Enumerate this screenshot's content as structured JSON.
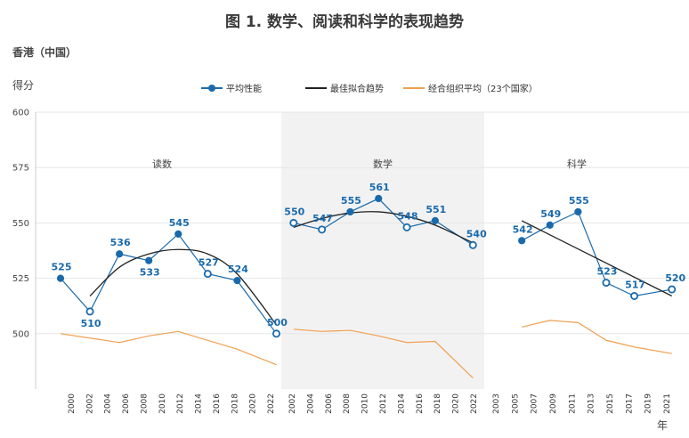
{
  "title": "图 1. 数学、阅读和科学的表现趋势",
  "country": "香港（中国）",
  "chart_data": {
    "type": "line",
    "ylabel": "得分",
    "xlabel": "年",
    "ylim": [
      475,
      600
    ],
    "yticks": [
      500,
      525,
      550,
      575,
      600
    ],
    "legend": {
      "mean": "平均性能",
      "trend": "最佳拟合趋势",
      "oecd": "经合组织平均（23个国家）"
    },
    "colors": {
      "mean": "#1a6aab",
      "trend": "#222222",
      "oecd": "#f0a050",
      "shade": "#f2f2f2",
      "grid": "#e6e6e6"
    },
    "panels": [
      {
        "name": "读数",
        "shaded": false,
        "x_labels": [
          "2000",
          "2002",
          "2004",
          "2006",
          "2008",
          "2010",
          "2012",
          "2014",
          "2016",
          "2018",
          "2020",
          "2022"
        ],
        "mean": [
          {
            "year": 2000,
            "value": 525,
            "hollow": false,
            "label": "525"
          },
          {
            "year": 2003,
            "value": 510,
            "hollow": true,
            "label": "510"
          },
          {
            "year": 2006,
            "value": 536,
            "hollow": false,
            "label": "536"
          },
          {
            "year": 2009,
            "value": 533,
            "hollow": false,
            "label": "533"
          },
          {
            "year": 2012,
            "value": 545,
            "hollow": false,
            "label": "545"
          },
          {
            "year": 2015,
            "value": 527,
            "hollow": true,
            "label": "527"
          },
          {
            "year": 2018,
            "value": 524,
            "hollow": false,
            "label": "524"
          },
          {
            "year": 2022,
            "value": 500,
            "hollow": true,
            "label": "500"
          }
        ],
        "trend": [
          [
            2003,
            517
          ],
          [
            2006,
            530
          ],
          [
            2009,
            536
          ],
          [
            2012,
            538
          ],
          [
            2015,
            536
          ],
          [
            2018,
            527
          ],
          [
            2022,
            504
          ]
        ],
        "oecd": [
          [
            2000,
            500
          ],
          [
            2003,
            498
          ],
          [
            2006,
            496
          ],
          [
            2009,
            499
          ],
          [
            2012,
            501
          ],
          [
            2015,
            497
          ],
          [
            2018,
            493
          ],
          [
            2022,
            486
          ]
        ]
      },
      {
        "name": "数学",
        "shaded": true,
        "x_labels": [
          "2002",
          "2004",
          "2006",
          "2008",
          "2010",
          "2012",
          "2014",
          "2016",
          "2018",
          "2020",
          "2022"
        ],
        "mean": [
          {
            "year": 2003,
            "value": 550,
            "hollow": true,
            "label": "550"
          },
          {
            "year": 2006,
            "value": 547,
            "hollow": true,
            "label": "547"
          },
          {
            "year": 2009,
            "value": 555,
            "hollow": false,
            "label": "555"
          },
          {
            "year": 2012,
            "value": 561,
            "hollow": false,
            "label": "561"
          },
          {
            "year": 2015,
            "value": 548,
            "hollow": true,
            "label": "548"
          },
          {
            "year": 2018,
            "value": 551,
            "hollow": false,
            "label": "551"
          },
          {
            "year": 2022,
            "value": 540,
            "hollow": true,
            "label": "540"
          }
        ],
        "trend": [
          [
            2003,
            548
          ],
          [
            2006,
            552
          ],
          [
            2009,
            554.5
          ],
          [
            2012,
            555
          ],
          [
            2015,
            553
          ],
          [
            2018,
            549
          ],
          [
            2022,
            541
          ]
        ],
        "oecd": [
          [
            2003,
            502
          ],
          [
            2006,
            501
          ],
          [
            2009,
            501.5
          ],
          [
            2012,
            499
          ],
          [
            2015,
            496
          ],
          [
            2018,
            496.5
          ],
          [
            2022,
            480
          ]
        ]
      },
      {
        "name": "科学",
        "shaded": false,
        "x_labels": [
          "2003",
          "2005",
          "2007",
          "2009",
          "2011",
          "2013",
          "2015",
          "2017",
          "2019",
          "2021"
        ],
        "mean": [
          {
            "year": 2006,
            "value": 542,
            "hollow": false,
            "label": "542"
          },
          {
            "year": 2009,
            "value": 549,
            "hollow": false,
            "label": "549"
          },
          {
            "year": 2012,
            "value": 555,
            "hollow": false,
            "label": "555"
          },
          {
            "year": 2015,
            "value": 523,
            "hollow": true,
            "label": "523"
          },
          {
            "year": 2018,
            "value": 517,
            "hollow": true,
            "label": "517"
          },
          {
            "year": 2022,
            "value": 520,
            "hollow": true,
            "label": "520"
          }
        ],
        "trend": [
          [
            2006,
            551
          ],
          [
            2022,
            517
          ]
        ],
        "oecd": [
          [
            2006,
            503
          ],
          [
            2009,
            506
          ],
          [
            2012,
            505
          ],
          [
            2015,
            497
          ],
          [
            2018,
            494
          ],
          [
            2022,
            491
          ]
        ]
      }
    ]
  }
}
